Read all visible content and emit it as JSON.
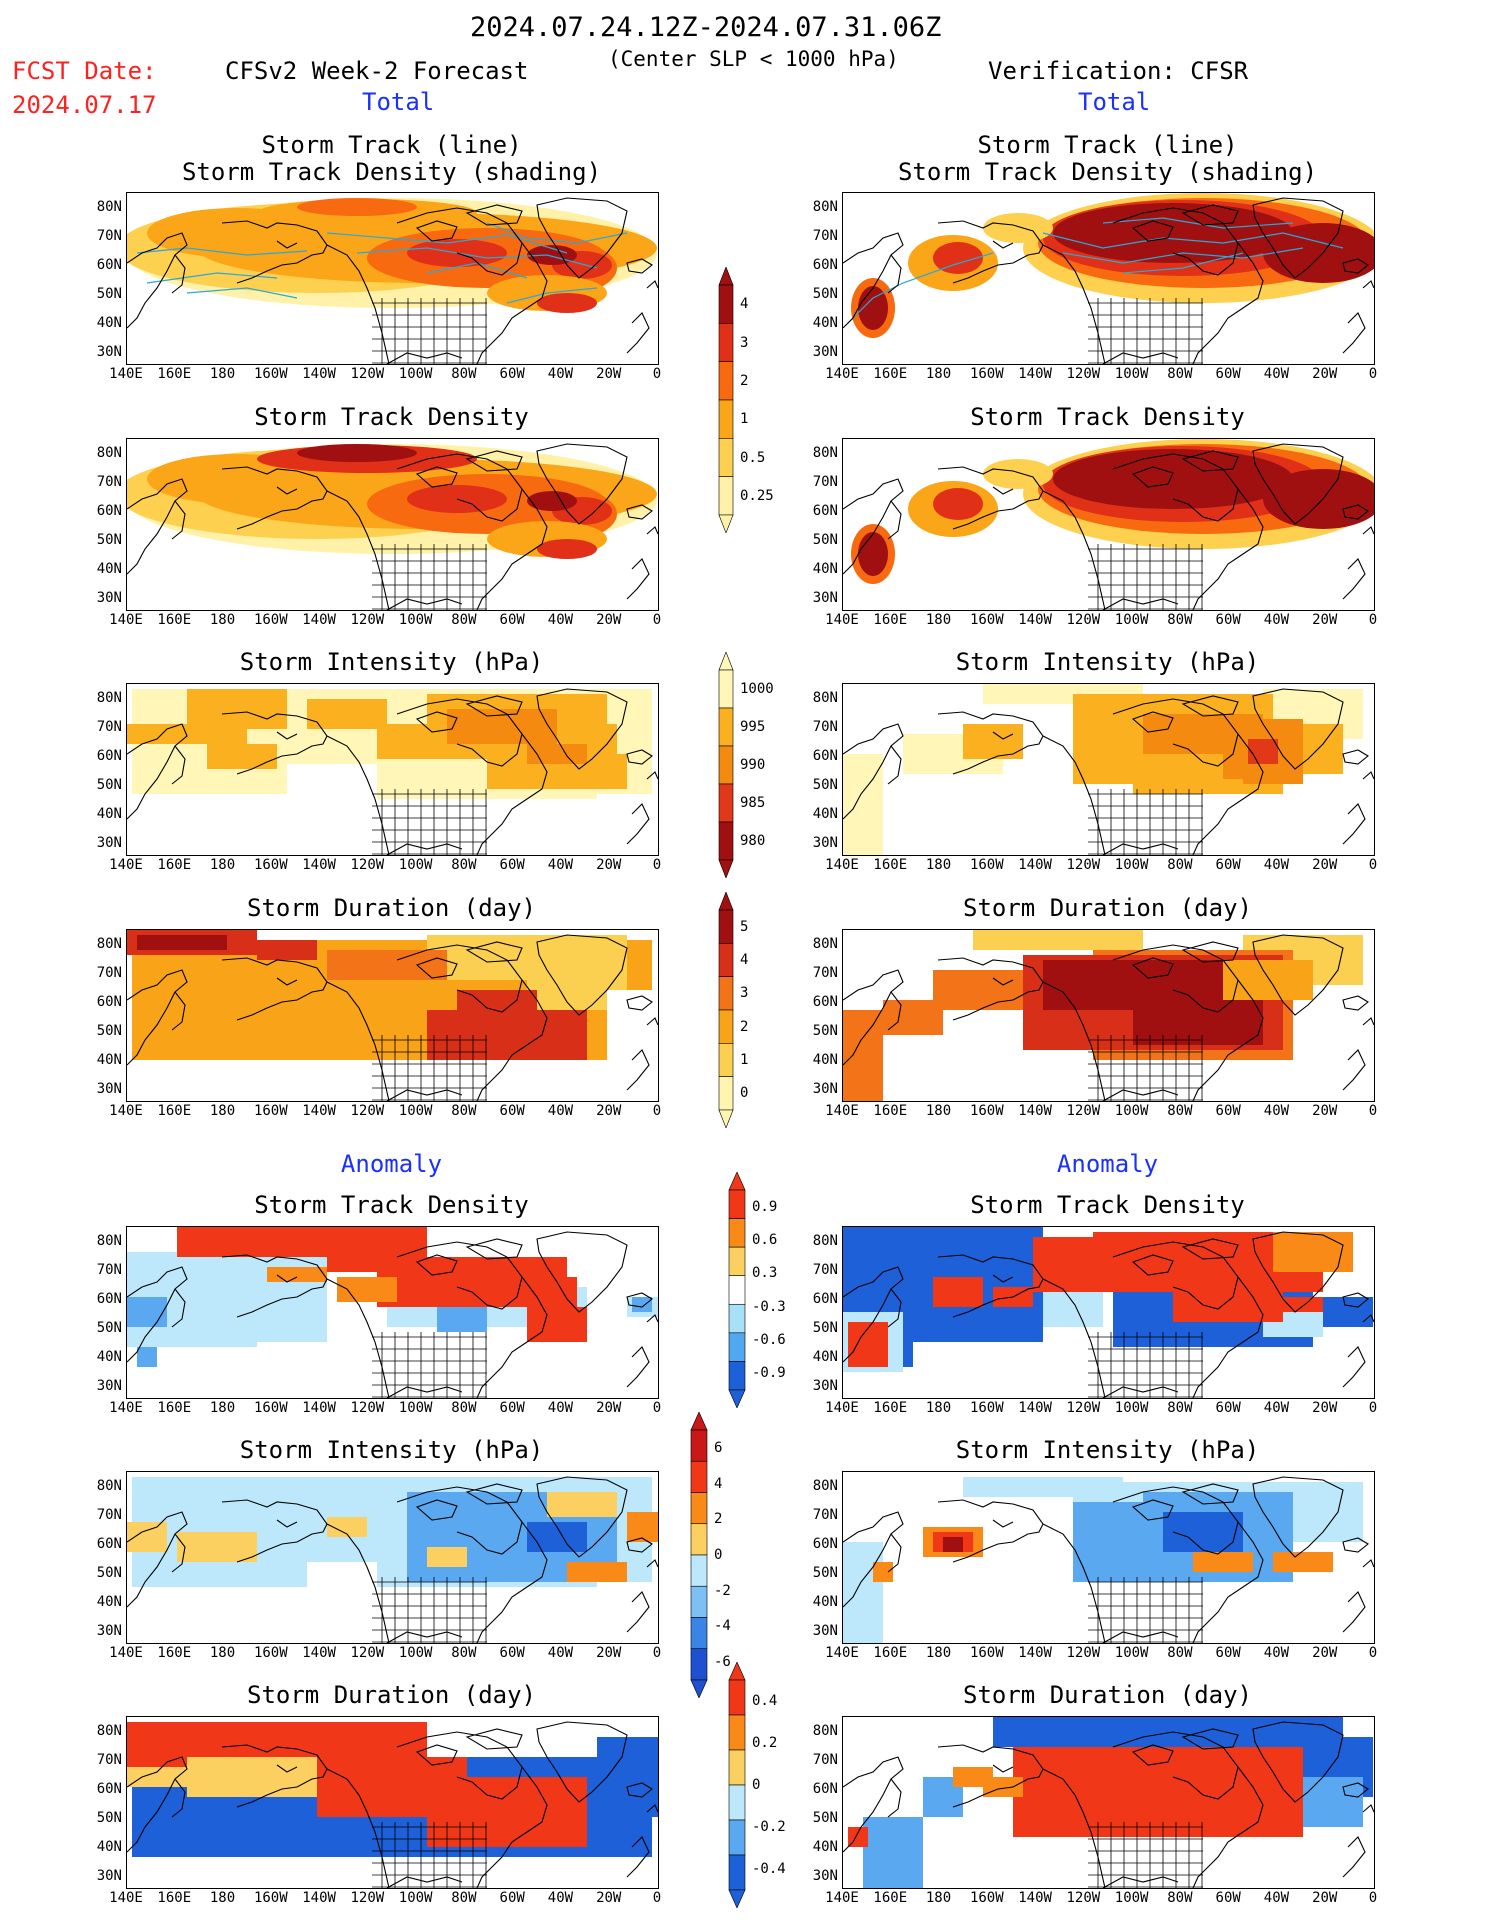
{
  "header": {
    "date_range": "2024.07.24.12Z-2024.07.31.06Z",
    "condition": "(Center SLP < 1000 hPa)",
    "fcst_label": "FCST Date:",
    "fcst_date": "2024.07.17",
    "forecast_title": "CFSv2 Week-2 Forecast",
    "verification_title": "Verification: CFSR",
    "total_label": "Total",
    "anomaly_label": "Anomaly"
  },
  "panels": {
    "track_line": "Storm Track (line)",
    "track_shading": "Storm Track Density (shading)",
    "density": "Storm Track Density",
    "intensity": "Storm Intensity (hPa)",
    "duration": "Storm Duration (day)"
  },
  "axes": {
    "lat_ticks": [
      "80N",
      "70N",
      "60N",
      "50N",
      "40N",
      "30N"
    ],
    "lon_ticks": [
      "140E",
      "160E",
      "180",
      "160W",
      "140W",
      "120W",
      "100W",
      "80W",
      "60W",
      "40W",
      "20W",
      "0"
    ]
  },
  "colorbars": {
    "density_total": {
      "labels": [
        "4",
        "3",
        "2",
        "1",
        "0.5",
        "0.25"
      ],
      "colors": [
        "#a01010",
        "#e03018",
        "#f86a10",
        "#fba518",
        "#fdd050",
        "#fff2a8"
      ]
    },
    "intensity_total": {
      "labels": [
        "1000",
        "995",
        "990",
        "985",
        "980"
      ],
      "colors": [
        "#fff6b8",
        "#fbb020",
        "#f58a10",
        "#e03818",
        "#a01010"
      ]
    },
    "duration_total": {
      "labels": [
        "5",
        "4",
        "3",
        "2",
        "1",
        "0"
      ],
      "colors": [
        "#a01010",
        "#d83018",
        "#f37318",
        "#f9a318",
        "#fbd050",
        "#fff4b0"
      ]
    },
    "density_anom": {
      "labels": [
        "0.9",
        "0.6",
        "0.3",
        "-0.3",
        "-0.6",
        "-0.9"
      ],
      "colors": [
        "#f03818",
        "#f98a18",
        "#fbd060",
        "#ffffff",
        "#a8e0f8",
        "#50a8f0",
        "#1e60d8"
      ]
    },
    "intensity_anom": {
      "labels": [
        "6",
        "4",
        "2",
        "0",
        "-2",
        "-4",
        "-6"
      ],
      "colors": [
        "#c81818",
        "#f03818",
        "#f98a18",
        "#fbd060",
        "#bde8fb",
        "#7cc0f4",
        "#3a84e6",
        "#1e50d0"
      ]
    },
    "duration_anom": {
      "labels": [
        "0.4",
        "0.2",
        "0",
        "-0.2",
        "-0.4"
      ],
      "colors": [
        "#f03818",
        "#f98a18",
        "#fbd060",
        "#bde8fb",
        "#5aa8f0",
        "#1e60d8"
      ]
    }
  },
  "palette": {
    "dens": [
      "#fff2a8",
      "#fdd050",
      "#fba518",
      "#f86a10",
      "#e03018",
      "#a01010"
    ],
    "int": [
      "#fff6b8",
      "#fbb020",
      "#f58a10",
      "#e03818",
      "#a01010"
    ],
    "dur": [
      "#fff4b0",
      "#fbd050",
      "#f9a318",
      "#f37318",
      "#d83018",
      "#a01010"
    ],
    "anom_pos": [
      "#fbd060",
      "#f98a18",
      "#f03818"
    ],
    "anom_neg": [
      "#bde8fb",
      "#5aa8f0",
      "#1e60d8"
    ],
    "track": "#2aa8d8"
  }
}
